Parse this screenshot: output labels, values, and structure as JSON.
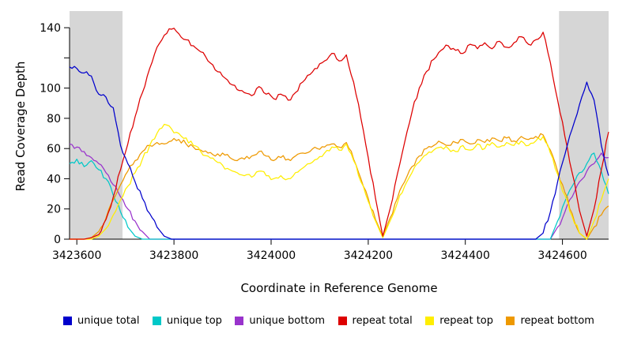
{
  "chart_data": {
    "type": "line",
    "title": "",
    "xlabel": "Coordinate in Reference Genome",
    "ylabel": "Read Coverage Depth",
    "xlim": [
      3423585,
      3424695
    ],
    "ylim": [
      0,
      151
    ],
    "grid": false,
    "legend_position": "bottom",
    "background_color": "#ffffff",
    "shaded_region_color": "#d6d6d6",
    "shaded_regions": [
      {
        "x0": 3423585,
        "x1": 3423694
      },
      {
        "x0": 3424593,
        "x1": 3424695
      }
    ],
    "xticks": {
      "values": [
        3423600,
        3423800,
        3424000,
        3424200,
        3424400,
        3424600
      ],
      "labels": [
        "3423600",
        "3423800",
        "3424000",
        "3424200",
        "3424400",
        "3424600"
      ]
    },
    "yticks": {
      "values": [
        0,
        20,
        40,
        60,
        80,
        100,
        120,
        140
      ],
      "labels": [
        "0",
        "20",
        "40",
        "60",
        "80",
        "100",
        "",
        "140"
      ]
    },
    "x": [
      3423585,
      3423600,
      3423615,
      3423630,
      3423645,
      3423660,
      3423675,
      3423690,
      3423705,
      3423720,
      3423735,
      3423750,
      3423765,
      3423780,
      3423795,
      3423810,
      3423825,
      3423840,
      3423855,
      3423870,
      3423885,
      3423900,
      3423915,
      3423930,
      3423945,
      3423960,
      3423975,
      3423990,
      3424005,
      3424020,
      3424035,
      3424050,
      3424065,
      3424080,
      3424095,
      3424110,
      3424125,
      3424140,
      3424155,
      3424170,
      3424185,
      3424200,
      3424215,
      3424230,
      3424245,
      3424260,
      3424275,
      3424290,
      3424305,
      3424320,
      3424335,
      3424350,
      3424365,
      3424380,
      3424395,
      3424410,
      3424425,
      3424440,
      3424455,
      3424470,
      3424485,
      3424500,
      3424515,
      3424530,
      3424545,
      3424560,
      3424575,
      3424590,
      3424605,
      3424620,
      3424635,
      3424650,
      3424665,
      3424680,
      3424695
    ],
    "series": [
      {
        "name": "unique total",
        "color": "#0000cc",
        "values": [
          114,
          113,
          110,
          108,
          96,
          94,
          87,
          62,
          50,
          38,
          27,
          17,
          8,
          2,
          0,
          0,
          0,
          0,
          0,
          0,
          0,
          0,
          0,
          0,
          0,
          0,
          0,
          0,
          0,
          0,
          0,
          0,
          0,
          0,
          0,
          0,
          0,
          0,
          0,
          0,
          0,
          0,
          0,
          0,
          0,
          0,
          0,
          0,
          0,
          0,
          0,
          0,
          0,
          0,
          0,
          0,
          0,
          0,
          0,
          0,
          0,
          0,
          0,
          0,
          0,
          4,
          18,
          38,
          56,
          73,
          89,
          104,
          92,
          62,
          42
        ]
      },
      {
        "name": "unique top",
        "color": "#00c8c8",
        "values": [
          50,
          53,
          48,
          52,
          46,
          40,
          29,
          18,
          8,
          2,
          0,
          0,
          0,
          0,
          0,
          0,
          0,
          0,
          0,
          0,
          0,
          0,
          0,
          0,
          0,
          0,
          0,
          0,
          0,
          0,
          0,
          0,
          0,
          0,
          0,
          0,
          0,
          0,
          0,
          0,
          0,
          0,
          0,
          0,
          0,
          0,
          0,
          0,
          0,
          0,
          0,
          0,
          0,
          0,
          0,
          0,
          0,
          0,
          0,
          0,
          0,
          0,
          0,
          0,
          0,
          0,
          0,
          12,
          25,
          35,
          44,
          50,
          57,
          45,
          30
        ]
      },
      {
        "name": "unique bottom",
        "color": "#9933cc",
        "values": [
          63,
          61,
          58,
          54,
          50,
          44,
          36,
          28,
          20,
          12,
          5,
          0,
          0,
          0,
          0,
          0,
          0,
          0,
          0,
          0,
          0,
          0,
          0,
          0,
          0,
          0,
          0,
          0,
          0,
          0,
          0,
          0,
          0,
          0,
          0,
          0,
          0,
          0,
          0,
          0,
          0,
          0,
          0,
          0,
          0,
          0,
          0,
          0,
          0,
          0,
          0,
          0,
          0,
          0,
          0,
          0,
          0,
          0,
          0,
          0,
          0,
          0,
          0,
          0,
          0,
          0,
          0,
          8,
          18,
          28,
          38,
          45,
          50,
          57,
          54
        ]
      },
      {
        "name": "repeat total",
        "color": "#dd0000",
        "values": [
          0,
          0,
          0,
          1,
          3,
          13,
          28,
          46,
          63,
          81,
          97,
          113,
          127,
          135,
          139,
          136,
          132,
          128,
          124,
          118,
          112,
          108,
          103,
          99,
          97,
          95,
          101,
          96,
          93,
          96,
          92,
          97,
          104,
          109,
          113,
          118,
          123,
          118,
          122,
          104,
          80,
          54,
          27,
          2,
          20,
          43,
          64,
          84,
          100,
          111,
          119,
          125,
          128,
          125,
          123,
          129,
          126,
          130,
          126,
          131,
          127,
          130,
          134,
          129,
          132,
          137,
          117,
          92,
          68,
          44,
          19,
          2,
          20,
          46,
          71
        ]
      },
      {
        "name": "repeat top",
        "color": "#ffee00",
        "values": [
          0,
          0,
          0,
          0,
          2,
          7,
          16,
          26,
          35,
          44,
          53,
          62,
          70,
          76,
          73,
          70,
          67,
          62,
          58,
          55,
          52,
          49,
          46,
          44,
          42,
          41,
          45,
          42,
          40,
          42,
          40,
          44,
          47,
          50,
          53,
          57,
          61,
          59,
          63,
          52,
          38,
          25,
          12,
          1,
          12,
          24,
          35,
          44,
          51,
          56,
          59,
          61,
          60,
          58,
          62,
          59,
          63,
          60,
          64,
          61,
          64,
          62,
          65,
          62,
          65,
          68,
          57,
          43,
          29,
          15,
          4,
          0,
          12,
          26,
          40
        ]
      },
      {
        "name": "repeat bottom",
        "color": "#ee9900",
        "values": [
          0,
          0,
          0,
          1,
          5,
          14,
          26,
          36,
          45,
          52,
          58,
          62,
          64,
          63,
          65,
          66,
          63,
          61,
          59,
          57,
          55,
          57,
          54,
          52,
          53,
          55,
          58,
          55,
          52,
          54,
          53,
          55,
          57,
          58,
          60,
          61,
          63,
          61,
          64,
          53,
          40,
          27,
          13,
          2,
          14,
          27,
          38,
          48,
          55,
          60,
          62,
          64,
          62,
          64,
          66,
          63,
          66,
          64,
          67,
          65,
          67,
          65,
          68,
          66,
          68,
          69,
          59,
          45,
          31,
          17,
          4,
          0,
          8,
          16,
          22
        ]
      }
    ]
  }
}
